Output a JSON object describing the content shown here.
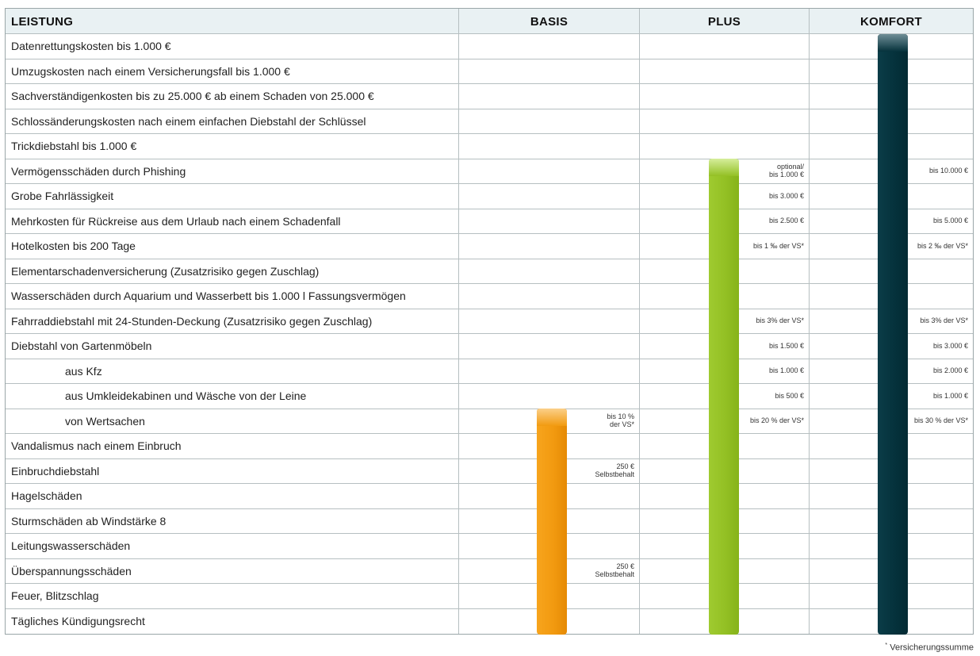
{
  "table": {
    "header": {
      "leistung": "LEISTUNG",
      "basis": "BASIS",
      "plus": "PLUS",
      "komfort": "KOMFORT"
    },
    "rows": [
      {
        "label": "Datenrettungskosten bis 1.000 €",
        "indent": false,
        "basis": "",
        "plus": "",
        "komfort": ""
      },
      {
        "label": "Umzugskosten nach einem Versicherungsfall bis 1.000 €",
        "indent": false,
        "basis": "",
        "plus": "",
        "komfort": ""
      },
      {
        "label": "Sachverständigenkosten bis zu 25.000 € ab einem Schaden von 25.000 €",
        "indent": false,
        "basis": "",
        "plus": "",
        "komfort": ""
      },
      {
        "label": "Schlossänderungskosten nach einem einfachen Diebstahl der Schlüssel",
        "indent": false,
        "basis": "",
        "plus": "",
        "komfort": ""
      },
      {
        "label": "Trickdiebstahl bis 1.000 €",
        "indent": false,
        "basis": "",
        "plus": "",
        "komfort": ""
      },
      {
        "label": "Vermögensschäden durch Phishing",
        "indent": false,
        "basis": "",
        "plus": "optional/\nbis 1.000 €",
        "komfort": "bis 10.000 €"
      },
      {
        "label": "Grobe Fahrlässigkeit",
        "indent": false,
        "basis": "",
        "plus": "bis 3.000 €",
        "komfort": ""
      },
      {
        "label": "Mehrkosten für Rückreise aus dem Urlaub nach einem Schadenfall",
        "indent": false,
        "basis": "",
        "plus": "bis 2.500 €",
        "komfort": "bis 5.000 €"
      },
      {
        "label": "Hotelkosten bis 200 Tage",
        "indent": false,
        "basis": "",
        "plus": "bis 1 ‰ der VS*",
        "komfort": "bis 2 ‰ der VS*"
      },
      {
        "label": "Elementarschadenversicherung (Zusatzrisiko gegen Zuschlag)",
        "indent": false,
        "basis": "",
        "plus": "",
        "komfort": ""
      },
      {
        "label": "Wasserschäden durch Aquarium und Wasserbett bis 1.000 l Fassungsvermögen",
        "indent": false,
        "basis": "",
        "plus": "",
        "komfort": ""
      },
      {
        "label": "Fahrraddiebstahl mit 24-Stunden-Deckung (Zusatzrisiko gegen Zuschlag)",
        "indent": false,
        "basis": "",
        "plus": "bis 3% der VS*",
        "komfort": "bis 3% der VS*"
      },
      {
        "label": "Diebstahl  von Gartenmöbeln",
        "indent": false,
        "basis": "",
        "plus": "bis 1.500 €",
        "komfort": "bis 3.000 €"
      },
      {
        "label": "aus Kfz",
        "indent": true,
        "basis": "",
        "plus": "bis 1.000 €",
        "komfort": "bis 2.000 €"
      },
      {
        "label": "aus Umkleidekabinen und Wäsche von der Leine",
        "indent": true,
        "basis": "",
        "plus": "bis 500 €",
        "komfort": "bis 1.000 €"
      },
      {
        "label": "von Wertsachen",
        "indent": true,
        "basis": "bis 10 %\nder VS*",
        "plus": "bis 20 % der VS*",
        "komfort": "bis 30 % der VS*"
      },
      {
        "label": "Vandalismus nach einem Einbruch",
        "indent": false,
        "basis": "",
        "plus": "",
        "komfort": ""
      },
      {
        "label": "Einbruchdiebstahl",
        "indent": false,
        "basis": "250 €\nSelbstbehalt",
        "plus": "",
        "komfort": ""
      },
      {
        "label": "Hagelschäden",
        "indent": false,
        "basis": "",
        "plus": "",
        "komfort": ""
      },
      {
        "label": "Sturmschäden ab Windstärke 8",
        "indent": false,
        "basis": "",
        "plus": "",
        "komfort": ""
      },
      {
        "label": "Leitungswasserschäden",
        "indent": false,
        "basis": "",
        "plus": "",
        "komfort": ""
      },
      {
        "label": "Überspannungsschäden",
        "indent": false,
        "basis": "250 €\nSelbstbehalt",
        "plus": "",
        "komfort": ""
      },
      {
        "label": "Feuer, Blitzschlag",
        "indent": false,
        "basis": "",
        "plus": "",
        "komfort": ""
      },
      {
        "label": "Tägliches Kündigungsrecht",
        "indent": false,
        "basis": "",
        "plus": "",
        "komfort": ""
      }
    ]
  },
  "coverage": {
    "basis": {
      "from_row": 15,
      "color": "#f29a10"
    },
    "plus": {
      "from_row": 5,
      "color": "#93c024"
    },
    "komfort": {
      "from_row": 0,
      "color": "#05323c"
    }
  },
  "footnote": {
    "marker": "*",
    "text": "Versicherungssumme"
  }
}
